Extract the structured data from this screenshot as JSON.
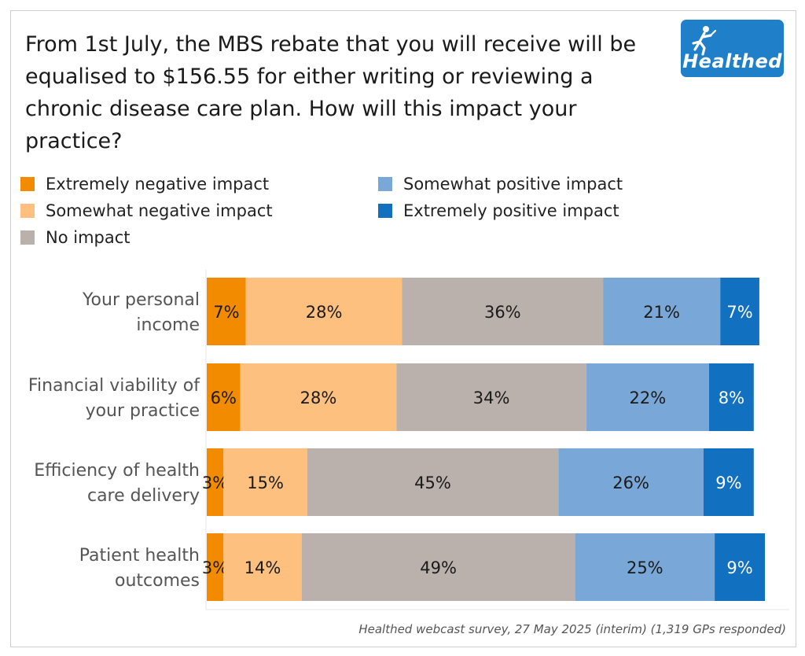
{
  "title": "From 1st July, the MBS rebate that you will receive will be equalised to $156.55 for either writing or reviewing a chronic disease care plan. How will this impact your practice?",
  "logo": {
    "text": "Healthed",
    "icon": "running-figure-icon",
    "color": "#1f7fc8"
  },
  "source": "Healthed webcast survey, 27 May 2025 (interim) (1,319 GPs responded)",
  "chart_data": {
    "type": "bar",
    "orientation": "horizontal",
    "stacked": true,
    "categories": [
      [
        "Your personal",
        "income"
      ],
      [
        "Financial viability of",
        "your practice"
      ],
      [
        "Efficiency of health",
        "care delivery"
      ],
      [
        "Patient health",
        "outcomes"
      ]
    ],
    "series": [
      {
        "name": "Extremely negative impact",
        "color": "#f28b00",
        "values": [
          7,
          6,
          3,
          3
        ]
      },
      {
        "name": "Somewhat negative impact",
        "color": "#fdc07f",
        "values": [
          28,
          28,
          15,
          14
        ]
      },
      {
        "name": "No impact",
        "color": "#bab0ac",
        "values": [
          36,
          34,
          45,
          49
        ]
      },
      {
        "name": "Somewhat positive impact",
        "color": "#79a8d8",
        "values": [
          21,
          22,
          26,
          25
        ]
      },
      {
        "name": "Extremely positive impact",
        "color": "#1170bf",
        "values": [
          7,
          8,
          9,
          9
        ]
      }
    ],
    "value_suffix": "%",
    "legend_position": "top",
    "grid": false
  }
}
